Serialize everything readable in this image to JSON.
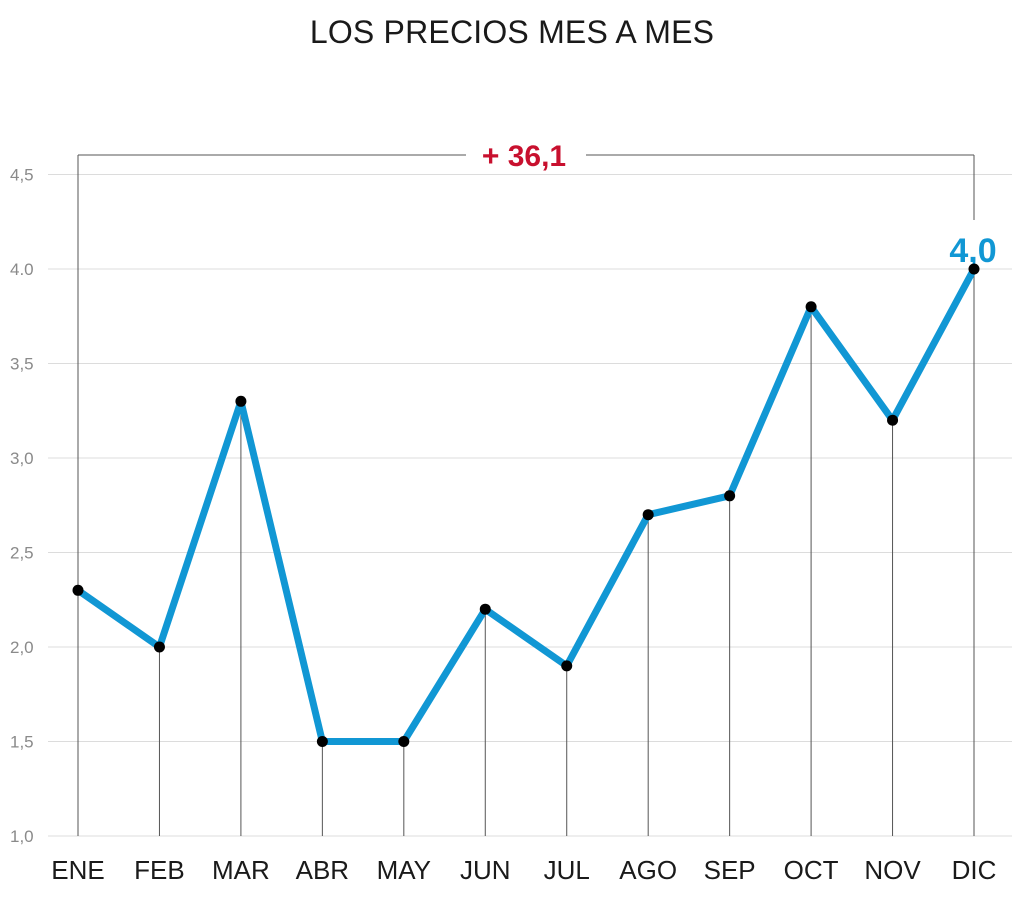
{
  "title": "LOS PRECIOS MES A MES",
  "colors": {
    "line": "#1197d4",
    "point": "#000000",
    "grid": "#dcdcdc",
    "droplines": "#555555",
    "bracket": "#555555",
    "change_label": "#c8102e",
    "final_label": "#1197d4"
  },
  "chart_data": {
    "type": "line",
    "title": "LOS PRECIOS MES A MES",
    "categories": [
      "ENE",
      "FEB",
      "MAR",
      "ABR",
      "MAY",
      "JUN",
      "JUL",
      "AGO",
      "SEP",
      "OCT",
      "NOV",
      "DIC"
    ],
    "series": [
      {
        "values": [
          2.3,
          2.0,
          3.3,
          1.5,
          1.5,
          2.2,
          1.9,
          2.7,
          2.8,
          3.8,
          3.2,
          4.0
        ]
      }
    ],
    "ylim": [
      1.0,
      5.0
    ],
    "yticks": [
      1.0,
      1.5,
      2.0,
      2.5,
      3.0,
      3.5,
      4.0,
      4.5
    ],
    "ytick_labels": [
      "1,0",
      "1,5",
      "2,0",
      "2,5",
      "3,0",
      "3,5",
      "4.0",
      "4,5"
    ],
    "grid": true,
    "legend": "none",
    "annotations": {
      "change_label": "+ 36,1",
      "final_value_label": "4,0"
    }
  }
}
